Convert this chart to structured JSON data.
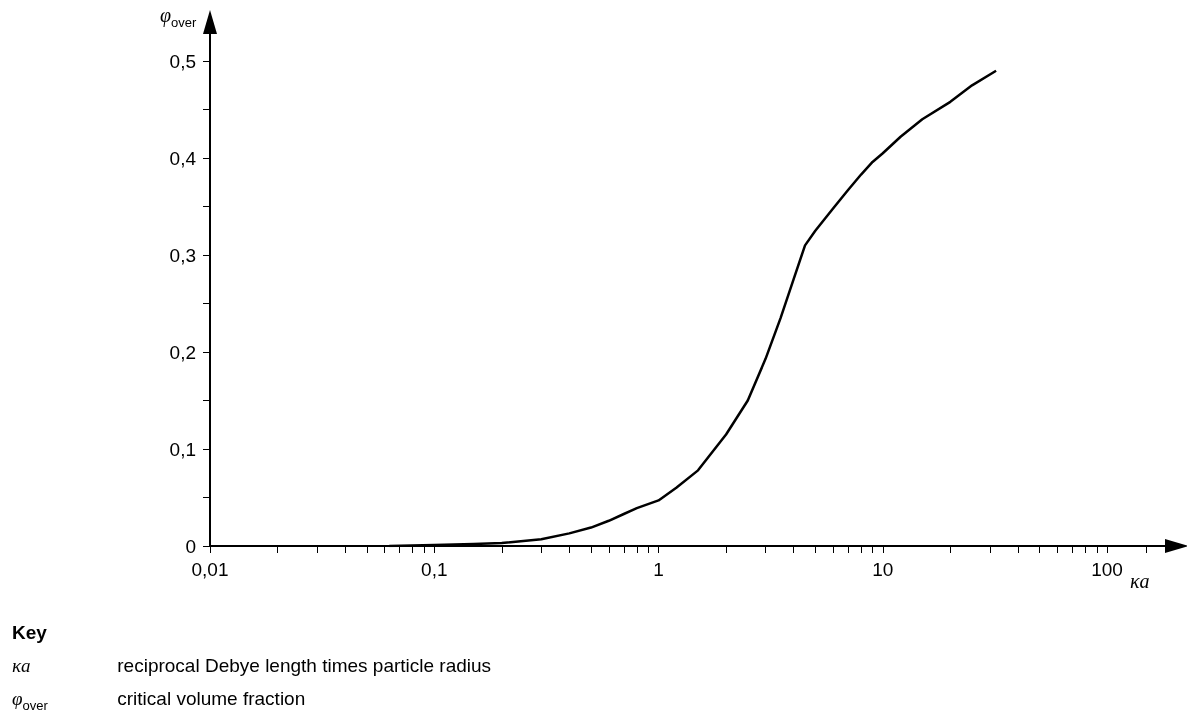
{
  "chart_data": {
    "type": "line",
    "xlabel": "κa",
    "ylabel": "φ$_{over}$",
    "log": "x",
    "x": [
      0.063,
      0.1,
      0.15,
      0.2,
      0.3,
      0.4,
      0.5,
      0.6,
      0.7,
      0.8,
      1,
      1.2,
      1.5,
      2,
      2.5,
      3,
      3.5,
      4,
      4.5,
      5,
      6,
      7,
      8,
      9,
      10,
      12,
      15,
      20,
      25,
      32
    ],
    "series": [
      {
        "color": "#000000",
        "values": [
          0,
          0.001,
          0.002,
          0.003,
          0.007,
          0.013,
          0.019,
          0.026,
          0.033,
          0.039,
          0.047,
          0.06,
          0.078,
          0.115,
          0.15,
          0.193,
          0.235,
          0.275,
          0.31,
          0.325,
          0.348,
          0.367,
          0.383,
          0.396,
          0.405,
          0.422,
          0.44,
          0.458,
          0.475,
          0.49
        ]
      }
    ],
    "xlim": [
      0.01,
      185
    ],
    "ylim": [
      0,
      0.53
    ],
    "xticks": [
      {
        "value": 0.01,
        "label": "0,01"
      },
      {
        "value": 0.02,
        "label": null
      },
      {
        "value": 0.03,
        "label": null
      },
      {
        "value": 0.04,
        "label": null
      },
      {
        "value": 0.05,
        "label": null
      },
      {
        "value": 0.06,
        "label": null
      },
      {
        "value": 0.07,
        "label": null
      },
      {
        "value": 0.08,
        "label": null
      },
      {
        "value": 0.09,
        "label": null
      },
      {
        "value": 0.1,
        "label": "0,1"
      },
      {
        "value": 0.2,
        "label": null
      },
      {
        "value": 0.3,
        "label": null
      },
      {
        "value": 0.4,
        "label": null
      },
      {
        "value": 0.5,
        "label": null
      },
      {
        "value": 0.6,
        "label": null
      },
      {
        "value": 0.7,
        "label": null
      },
      {
        "value": 0.8,
        "label": null
      },
      {
        "value": 0.9,
        "label": null
      },
      {
        "value": 1,
        "label": "1"
      },
      {
        "value": 2,
        "label": null
      },
      {
        "value": 3,
        "label": null
      },
      {
        "value": 4,
        "label": null
      },
      {
        "value": 5,
        "label": null
      },
      {
        "value": 6,
        "label": null
      },
      {
        "value": 7,
        "label": null
      },
      {
        "value": 8,
        "label": null
      },
      {
        "value": 9,
        "label": null
      },
      {
        "value": 10,
        "label": "10"
      },
      {
        "value": 20,
        "label": null
      },
      {
        "value": 30,
        "label": null
      },
      {
        "value": 40,
        "label": null
      },
      {
        "value": 50,
        "label": null
      },
      {
        "value": 60,
        "label": null
      },
      {
        "value": 70,
        "label": null
      },
      {
        "value": 80,
        "label": null
      },
      {
        "value": 90,
        "label": null
      },
      {
        "value": 100,
        "label": "100"
      },
      {
        "value": 150,
        "label": null
      }
    ],
    "yticks": [
      0,
      {
        "value": 0.05,
        "label": null
      },
      {
        "value": 0.1,
        "label": "0,1"
      },
      {
        "value": 0.15,
        "label": null
      },
      {
        "value": 0.2,
        "label": "0,2"
      },
      {
        "value": 0.25,
        "label": null
      },
      {
        "value": 0.3,
        "label": "0,3"
      },
      {
        "value": 0.35,
        "label": null
      },
      {
        "value": 0.4,
        "label": "0,4"
      },
      {
        "value": 0.45,
        "label": null
      },
      {
        "value": 0.5,
        "label": "0,5"
      }
    ],
    "grid": false,
    "marker": "none",
    "line_style": "solid",
    "annotations": [
      "Key",
      "κa reciprocal Debye length times particle radius",
      "φ$_{over}$ critical volume fraction"
    ]
  }
}
